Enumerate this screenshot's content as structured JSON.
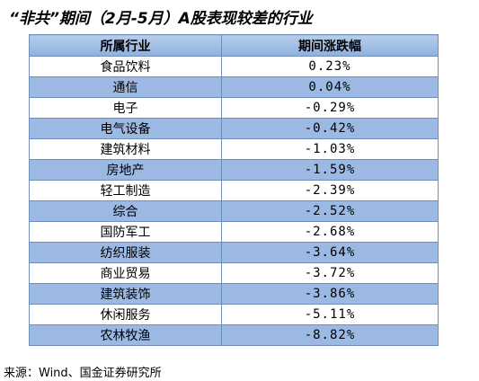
{
  "title": "“非共”期间（2月-5月）A股表现较差的行业",
  "table": {
    "header": [
      "所属行业",
      "期间涨跌幅"
    ],
    "rows": [
      [
        "食品饮料",
        "0.23%"
      ],
      [
        "通信",
        "0.04%"
      ],
      [
        "电子",
        "-0.29%"
      ],
      [
        "电气设备",
        "-0.42%"
      ],
      [
        "建筑材料",
        "-1.03%"
      ],
      [
        "房地产",
        "-1.59%"
      ],
      [
        "轻工制造",
        "-2.39%"
      ],
      [
        "综合",
        "-2.52%"
      ],
      [
        "国防军工",
        "-2.68%"
      ],
      [
        "纺织服装",
        "-3.64%"
      ],
      [
        "商业贸易",
        "-3.72%"
      ],
      [
        "建筑装饰",
        "-3.86%"
      ],
      [
        "休闲服务",
        "-5.11%"
      ],
      [
        "农林牧渔",
        "-8.82%"
      ]
    ]
  },
  "source": "来源：Wind、国金证券研究所"
}
